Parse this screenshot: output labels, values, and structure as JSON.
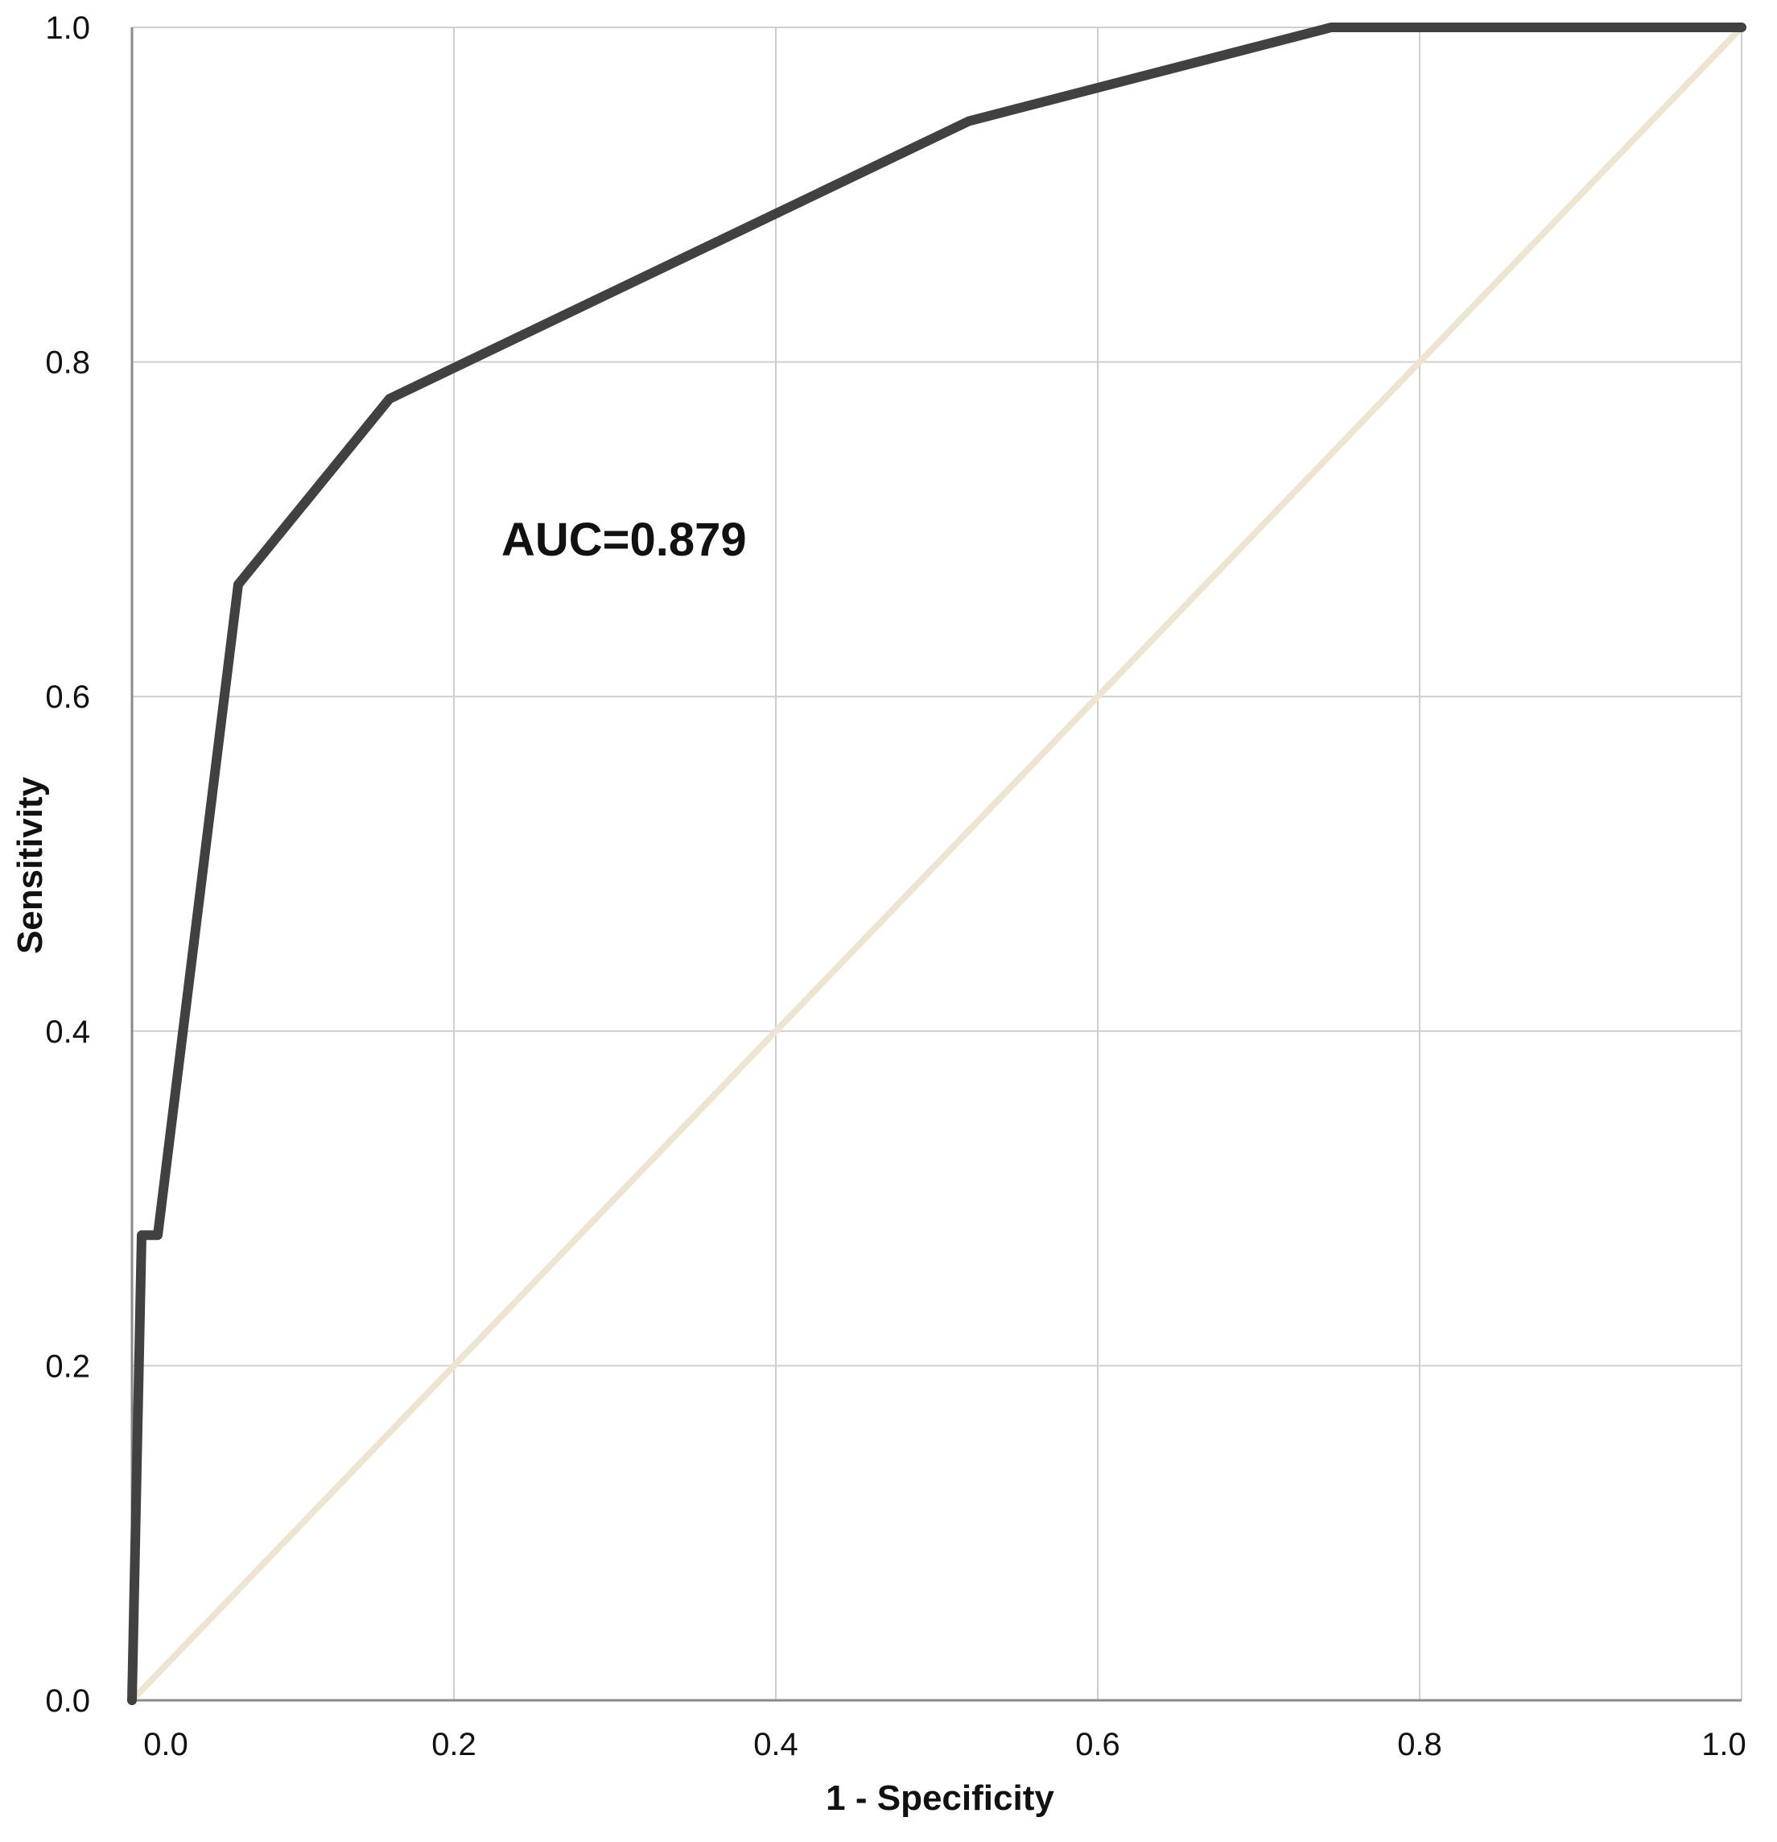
{
  "chart_data": {
    "type": "line",
    "title": "",
    "xlabel": "1 - Specificity",
    "ylabel": "Sensitivity",
    "xlim": [
      0,
      1
    ],
    "ylim": [
      0,
      1
    ],
    "grid": true,
    "x_ticks": [
      "0.0",
      "0.2",
      "0.4",
      "0.6",
      "0.8",
      "1.0"
    ],
    "y_ticks": [
      "0.0",
      "0.2",
      "0.4",
      "0.6",
      "0.8",
      "1.0"
    ],
    "annotation": "AUC=0.879",
    "series": [
      {
        "color": "#414141",
        "points": [
          {
            "x": 0.0,
            "y": 0.0
          },
          {
            "x": 0.006,
            "y": 0.278
          },
          {
            "x": 0.016,
            "y": 0.278
          },
          {
            "x": 0.066,
            "y": 0.667
          },
          {
            "x": 0.16,
            "y": 0.778
          },
          {
            "x": 0.52,
            "y": 0.944
          },
          {
            "x": 0.745,
            "y": 1.0
          },
          {
            "x": 1.0,
            "y": 1.0
          }
        ]
      },
      {
        "color": "#eee5d0",
        "points": [
          {
            "x": 0.0,
            "y": 0.0
          },
          {
            "x": 1.0,
            "y": 1.0
          }
        ]
      }
    ]
  }
}
